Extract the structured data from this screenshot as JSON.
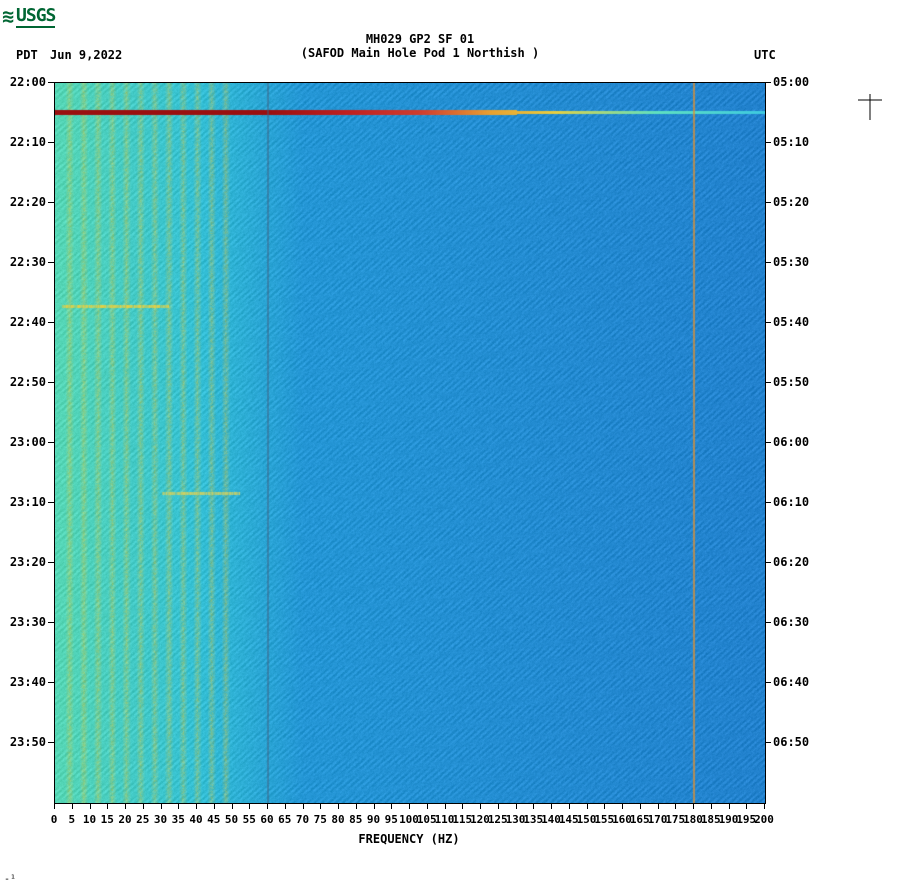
{
  "logo": {
    "wave_glyph": "≋",
    "text": "USGS"
  },
  "header": {
    "pdt_label": "PDT",
    "date": "Jun 9,2022",
    "utc_label": "UTC",
    "title_line1": "MH029 GP2 SF 01",
    "title_line2": "(SAFOD Main Hole Pod 1 Northish )"
  },
  "spectrogram": {
    "type": "heatmap",
    "x_axis": {
      "label": "FREQUENCY (HZ)",
      "min": 0,
      "max": 200,
      "tick_step": 5,
      "tick_values": [
        0,
        5,
        10,
        15,
        20,
        25,
        30,
        35,
        40,
        45,
        50,
        55,
        60,
        65,
        70,
        75,
        80,
        85,
        90,
        95,
        100,
        105,
        110,
        115,
        120,
        125,
        130,
        135,
        140,
        145,
        150,
        155,
        160,
        165,
        170,
        175,
        180,
        185,
        190,
        195,
        200
      ]
    },
    "left_axis": {
      "label": "PDT",
      "ticks": [
        "22:00",
        "22:10",
        "22:20",
        "22:30",
        "22:40",
        "22:50",
        "23:00",
        "23:10",
        "23:20",
        "23:30",
        "23:40",
        "23:50"
      ]
    },
    "right_axis": {
      "label": "UTC",
      "ticks": [
        "05:00",
        "05:10",
        "05:20",
        "05:30",
        "05:40",
        "05:50",
        "06:00",
        "06:10",
        "06:20",
        "06:30",
        "06:40",
        "06:50"
      ]
    },
    "colors": {
      "low_freq_band": "#5fe0c0",
      "mid_cyan": "#3dc9e0",
      "main_blue": "#2d9fe0",
      "deep_blue": "#2a7dd4",
      "yellow_streak": "#e8d040",
      "red_streak": "#c02020",
      "dark_red": "#9a1010",
      "orange_line": "#e09030"
    },
    "event_band": {
      "time_fraction": 0.04,
      "color_sequence": [
        "#9a1010",
        "#c02020",
        "#d04030",
        "#e8a030",
        "#e8d040",
        "#5fe0c0",
        "#3dc9e0"
      ]
    },
    "vertical_lines": [
      {
        "hz": 60,
        "color": "#406080",
        "width": 1
      },
      {
        "hz": 180,
        "color": "#e09030",
        "width": 1.5
      }
    ],
    "low_band_harmonics_hz": [
      4,
      8,
      12,
      16,
      20,
      24,
      28,
      32,
      36,
      40,
      44,
      48
    ],
    "minor_events": [
      {
        "time_fraction": 0.31,
        "hz_range": [
          2,
          32
        ],
        "color": "#e8d040"
      },
      {
        "time_fraction": 0.57,
        "hz_range": [
          30,
          52
        ],
        "color": "#d0d060"
      }
    ]
  },
  "footnote": "‑¹"
}
